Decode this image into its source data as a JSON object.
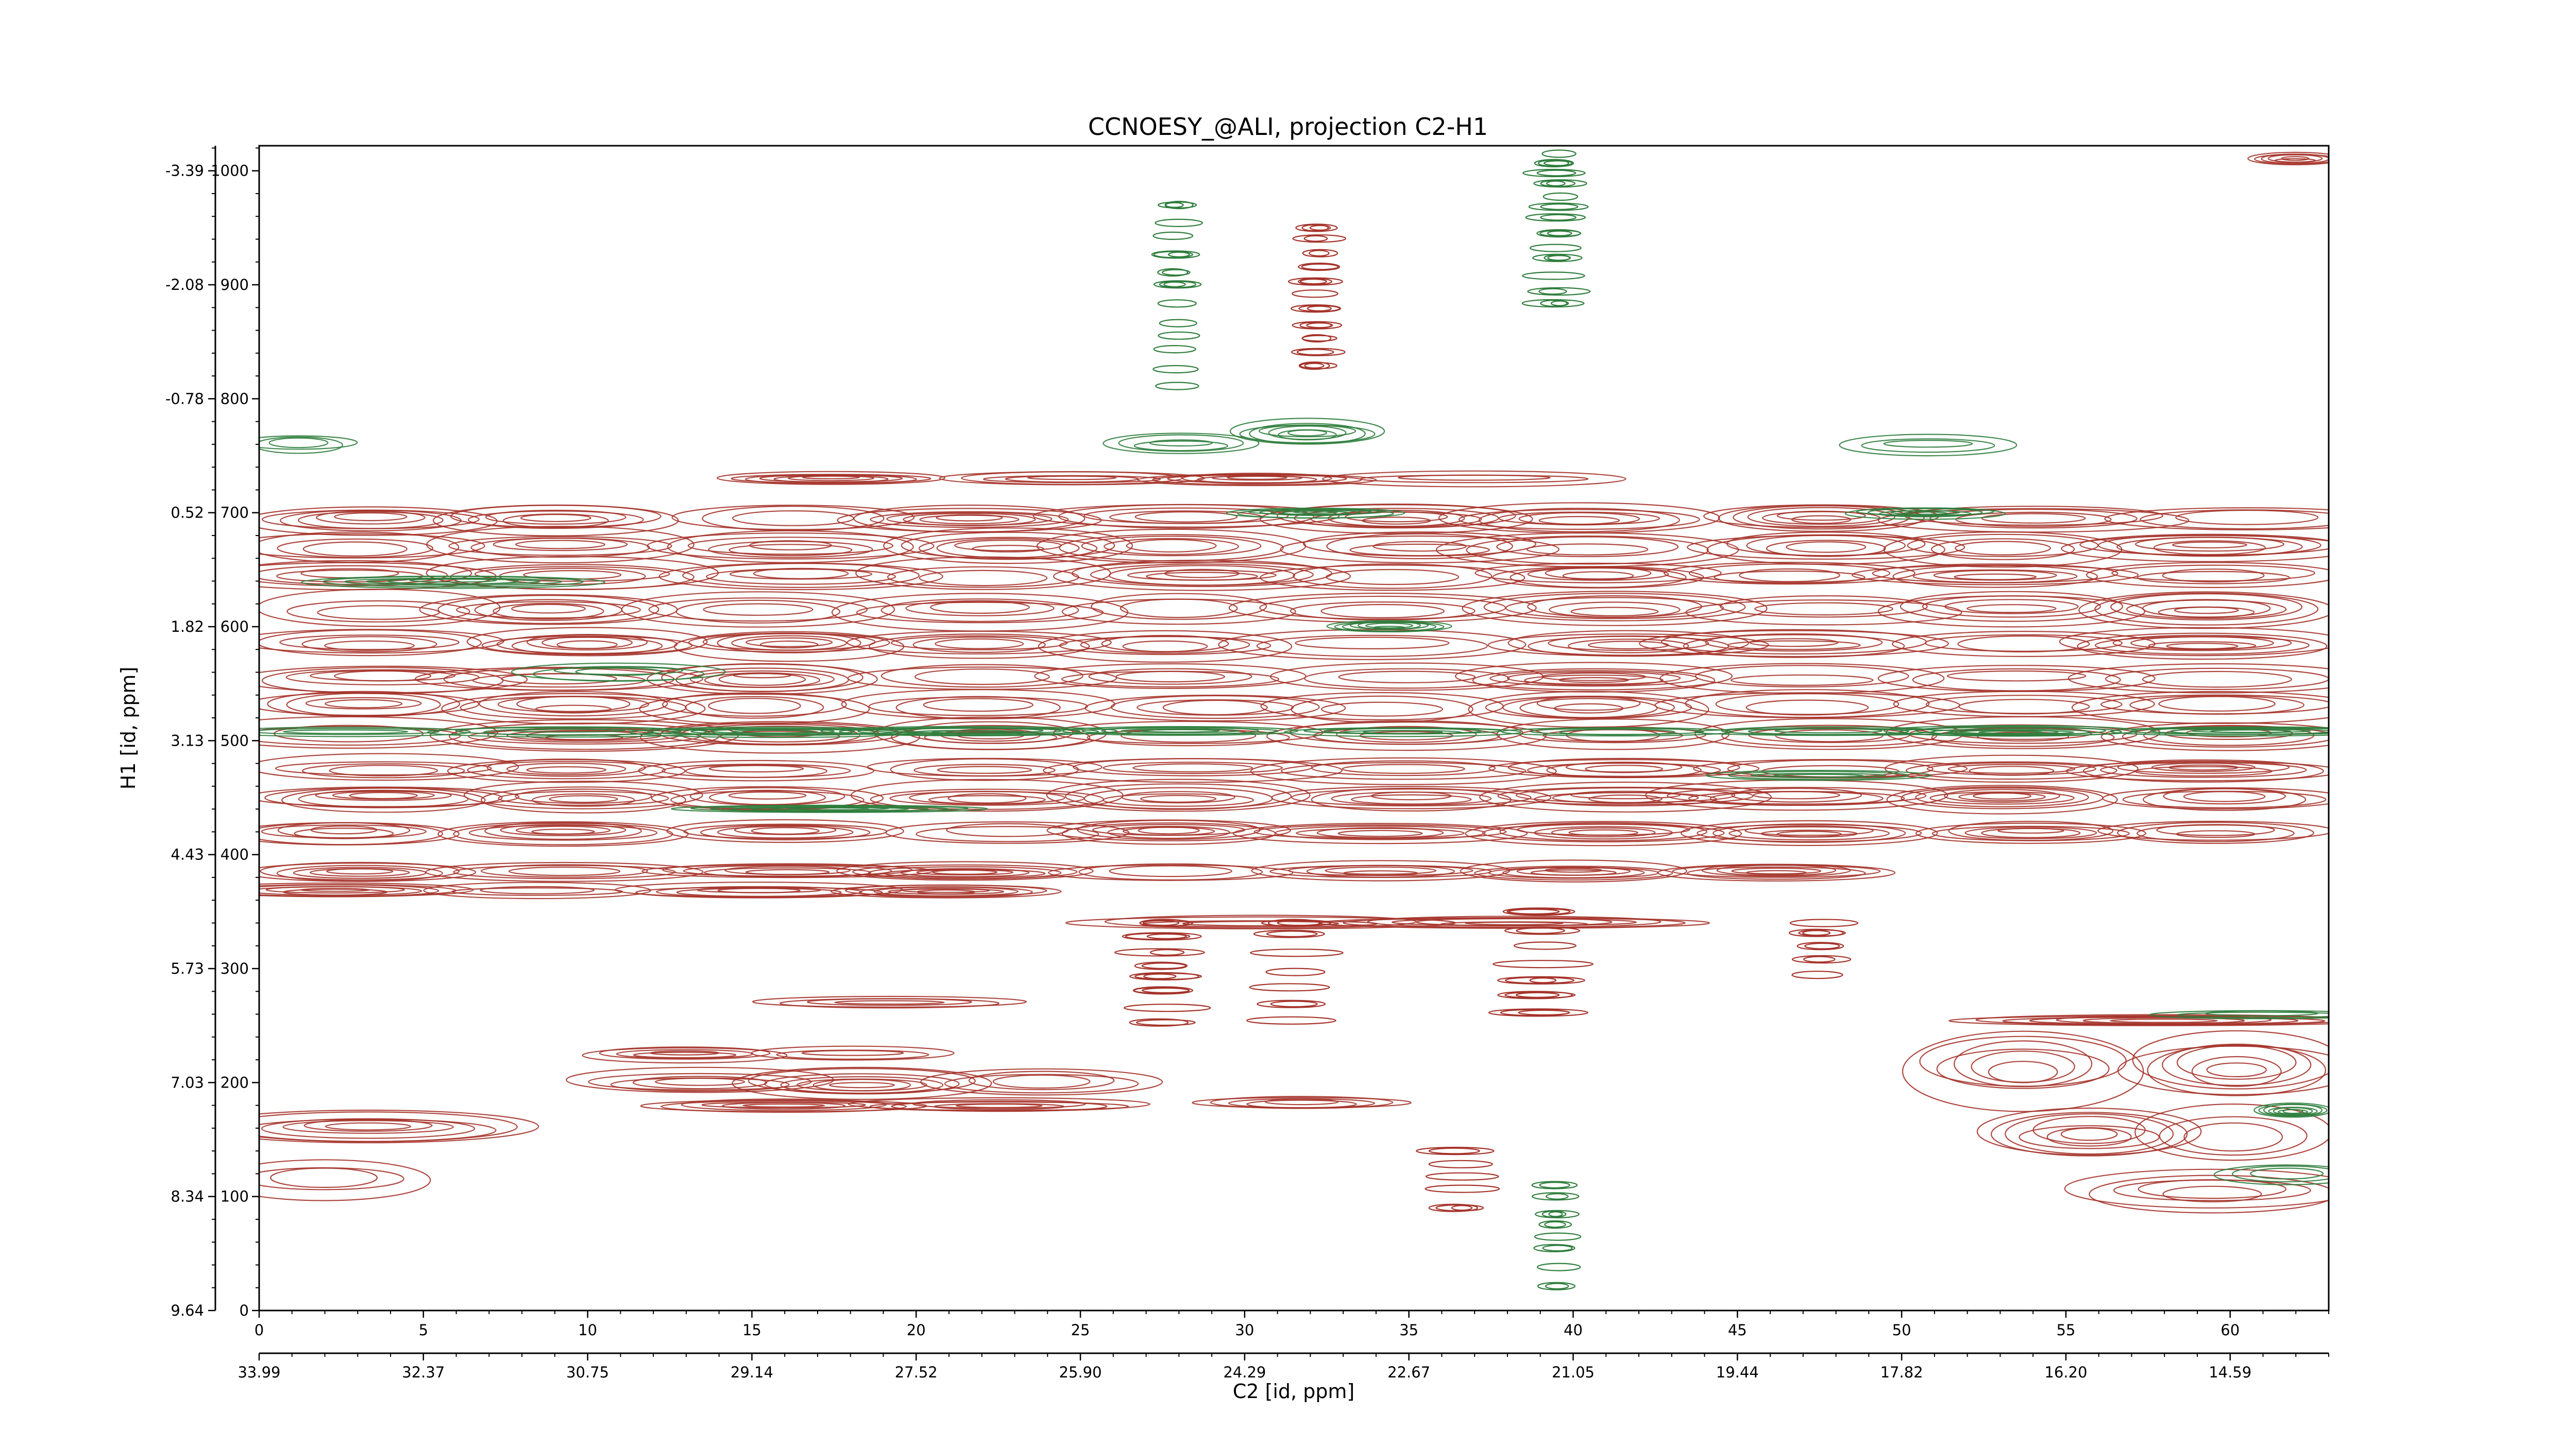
{
  "colors": {
    "positive": "#a5332a",
    "negative": "#2e7d3c",
    "axis": "#000000",
    "background": "#ffffff"
  },
  "chart_data": {
    "type": "heatmap",
    "title": "CCNOESY_@ALI, projection C2-H1",
    "xlabel": "C2 [id, ppm]",
    "ylabel": "H1 [id, ppm]",
    "xlim": [
      0,
      63
    ],
    "ylim": [
      0,
      1022
    ],
    "x_ticks": [
      0,
      5,
      10,
      15,
      20,
      25,
      30,
      35,
      40,
      45,
      50,
      55,
      60
    ],
    "x_ticks_ppm": [
      "33.99",
      "32.37",
      "30.75",
      "29.14",
      "27.52",
      "25.90",
      "24.29",
      "22.67",
      "21.05",
      "19.44",
      "17.82",
      "16.20",
      "14.59"
    ],
    "y_ticks": [
      0,
      100,
      200,
      300,
      400,
      500,
      600,
      700,
      800,
      900,
      1000
    ],
    "y_ticks_ppm": [
      "9.64",
      "8.34",
      "7.03",
      "5.73",
      "4.43",
      "3.13",
      "1.82",
      "0.52",
      "-0.78",
      "-2.08",
      "-3.39"
    ],
    "contour_bands": [
      {
        "y_center": 695,
        "half_height": 12,
        "x_start": 0,
        "x_end": 63,
        "sign": "positive"
      },
      {
        "y_center": 670,
        "half_height": 14,
        "x_start": 0,
        "x_end": 63,
        "sign": "positive"
      },
      {
        "y_center": 645,
        "half_height": 12,
        "x_start": 0,
        "x_end": 63,
        "sign": "positive"
      },
      {
        "y_center": 615,
        "half_height": 14,
        "x_start": 0,
        "x_end": 63,
        "sign": "positive"
      },
      {
        "y_center": 585,
        "half_height": 12,
        "x_start": 0,
        "x_end": 63,
        "sign": "positive"
      },
      {
        "y_center": 555,
        "half_height": 12,
        "x_start": 0,
        "x_end": 63,
        "sign": "positive"
      },
      {
        "y_center": 530,
        "half_height": 14,
        "x_start": 0,
        "x_end": 63,
        "sign": "positive"
      },
      {
        "y_center": 505,
        "half_height": 12,
        "x_start": 0,
        "x_end": 63,
        "sign": "positive"
      },
      {
        "y_center": 475,
        "half_height": 10,
        "x_start": 0,
        "x_end": 63,
        "sign": "positive"
      },
      {
        "y_center": 450,
        "half_height": 12,
        "x_start": 0,
        "x_end": 63,
        "sign": "positive"
      },
      {
        "y_center": 420,
        "half_height": 10,
        "x_start": 0,
        "x_end": 63,
        "sign": "positive"
      },
      {
        "y_center": 385,
        "half_height": 8,
        "x_start": 0,
        "x_end": 50,
        "sign": "positive"
      },
      {
        "y_center": 368,
        "half_height": 6,
        "x_start": 0,
        "x_end": 24,
        "sign": "positive"
      },
      {
        "y_center": 340,
        "half_height": 6,
        "x_start": 26,
        "x_end": 42,
        "sign": "positive"
      },
      {
        "y_center": 225,
        "half_height": 6,
        "x_start": 10,
        "x_end": 20,
        "sign": "positive"
      },
      {
        "y_center": 200,
        "half_height": 12,
        "x_start": 10,
        "x_end": 27,
        "sign": "positive"
      },
      {
        "y_center": 180,
        "half_height": 6,
        "x_start": 12,
        "x_end": 27,
        "sign": "positive"
      },
      {
        "y_center": 182,
        "half_height": 6,
        "x_start": 30,
        "x_end": 34.5,
        "sign": "positive"
      },
      {
        "y_center": 270,
        "half_height": 5,
        "x_start": 15,
        "x_end": 22.5,
        "sign": "positive"
      },
      {
        "y_center": 160,
        "half_height": 14,
        "x_start": 0,
        "x_end": 8,
        "sign": "positive"
      },
      {
        "y_center": 115,
        "half_height": 18,
        "x_start": 0,
        "x_end": 5,
        "sign": "positive"
      },
      {
        "y_center": 215,
        "half_height": 30,
        "x_start": 51,
        "x_end": 63,
        "sign": "positive"
      },
      {
        "y_center": 155,
        "half_height": 22,
        "x_start": 53,
        "x_end": 63,
        "sign": "positive"
      },
      {
        "y_center": 105,
        "half_height": 18,
        "x_start": 56,
        "x_end": 63,
        "sign": "positive"
      },
      {
        "y_center": 255,
        "half_height": 6,
        "x_start": 54,
        "x_end": 63,
        "sign": "positive"
      },
      {
        "y_center": 730,
        "half_height": 6,
        "x_start": 15,
        "x_end": 40,
        "sign": "positive"
      },
      {
        "y_center": 1010,
        "half_height": 5,
        "x_start": 61,
        "x_end": 63,
        "sign": "positive"
      },
      {
        "y_center": 508,
        "half_height": 4,
        "x_start": 0,
        "x_end": 63,
        "sign": "negative"
      },
      {
        "y_center": 560,
        "half_height": 8,
        "x_start": 9,
        "x_end": 14,
        "sign": "negative"
      },
      {
        "y_center": 440,
        "half_height": 3,
        "x_start": 14,
        "x_end": 22,
        "sign": "negative"
      },
      {
        "y_center": 640,
        "half_height": 5,
        "x_start": 3,
        "x_end": 10,
        "sign": "negative"
      },
      {
        "y_center": 700,
        "half_height": 4,
        "x_start": 30,
        "x_end": 34,
        "sign": "negative"
      },
      {
        "y_center": 700,
        "half_height": 5,
        "x_start": 49,
        "x_end": 53,
        "sign": "negative"
      },
      {
        "y_center": 760,
        "half_height": 8,
        "x_start": 0,
        "x_end": 2.5,
        "sign": "negative"
      },
      {
        "y_center": 760,
        "half_height": 8,
        "x_start": 26,
        "x_end": 30,
        "sign": "negative"
      },
      {
        "y_center": 770,
        "half_height": 10,
        "x_start": 30.5,
        "x_end": 34,
        "sign": "negative"
      },
      {
        "y_center": 760,
        "half_height": 8,
        "x_start": 49,
        "x_end": 53,
        "sign": "negative"
      },
      {
        "y_center": 260,
        "half_height": 4,
        "x_start": 58,
        "x_end": 63,
        "sign": "negative"
      },
      {
        "y_center": 120,
        "half_height": 8,
        "x_start": 60,
        "x_end": 63,
        "sign": "negative"
      },
      {
        "y_center": 175,
        "half_height": 6,
        "x_start": 61,
        "x_end": 63,
        "sign": "negative"
      },
      {
        "y_center": 600,
        "half_height": 6,
        "x_start": 33,
        "x_end": 36,
        "sign": "negative"
      },
      {
        "y_center": 470,
        "half_height": 4,
        "x_start": 45,
        "x_end": 50,
        "sign": "negative"
      }
    ],
    "contour_columns": [
      {
        "x_center": 39.5,
        "half_width": 0.8,
        "y_start": 880,
        "y_end": 1015,
        "sign": "negative"
      },
      {
        "x_center": 27.9,
        "half_width": 0.7,
        "y_start": 800,
        "y_end": 970,
        "sign": "negative"
      },
      {
        "x_center": 32.2,
        "half_width": 0.7,
        "y_start": 820,
        "y_end": 950,
        "sign": "positive"
      },
      {
        "x_center": 39.5,
        "half_width": 0.6,
        "y_start": 20,
        "y_end": 110,
        "sign": "negative"
      },
      {
        "x_center": 27.5,
        "half_width": 1.2,
        "y_start": 240,
        "y_end": 340,
        "sign": "positive"
      },
      {
        "x_center": 31.5,
        "half_width": 1.2,
        "y_start": 240,
        "y_end": 340,
        "sign": "positive"
      },
      {
        "x_center": 39.0,
        "half_width": 1.3,
        "y_start": 260,
        "y_end": 350,
        "sign": "positive"
      },
      {
        "x_center": 47.5,
        "half_width": 1.0,
        "y_start": 280,
        "y_end": 340,
        "sign": "positive"
      },
      {
        "x_center": 36.5,
        "half_width": 1.0,
        "y_start": 90,
        "y_end": 140,
        "sign": "positive"
      }
    ]
  }
}
